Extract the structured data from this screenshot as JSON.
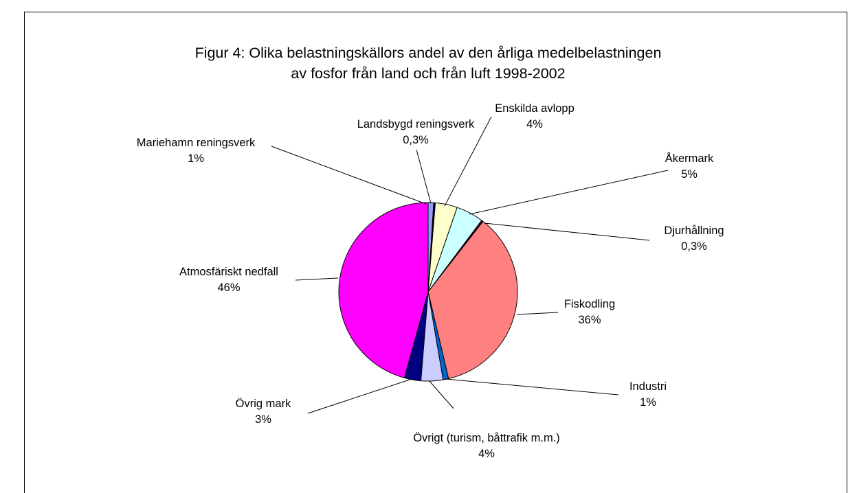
{
  "chart_data": {
    "type": "pie",
    "title": "Figur 4: Olika belastningskällors andel av den årliga medelbelastningen av fosfor från land och från luft 1998-2002",
    "categories": [
      "Mariehamn reningsverk",
      "Landsbygd reningsverk",
      "Enskilda avlopp",
      "Åkermark",
      "Djurhållning",
      "Fiskodling",
      "Industri",
      "Övrigt (turism, båttrafik m.m.)",
      "Övrig mark",
      "Atmosfäriskt nedfall"
    ],
    "values": [
      1,
      0.3,
      4,
      5,
      0.3,
      36,
      1,
      4,
      3,
      46
    ],
    "value_labels": [
      "1%",
      "0,3%",
      "4%",
      "5%",
      "0,3%",
      "36%",
      "1%",
      "4%",
      "3%",
      "46%"
    ],
    "colors": [
      "#9999ff",
      "#000000",
      "#ffffcc",
      "#ccffff",
      "#330033",
      "#ff8080",
      "#0066cc",
      "#ccccff",
      "#000080",
      "#ff00ff"
    ]
  }
}
